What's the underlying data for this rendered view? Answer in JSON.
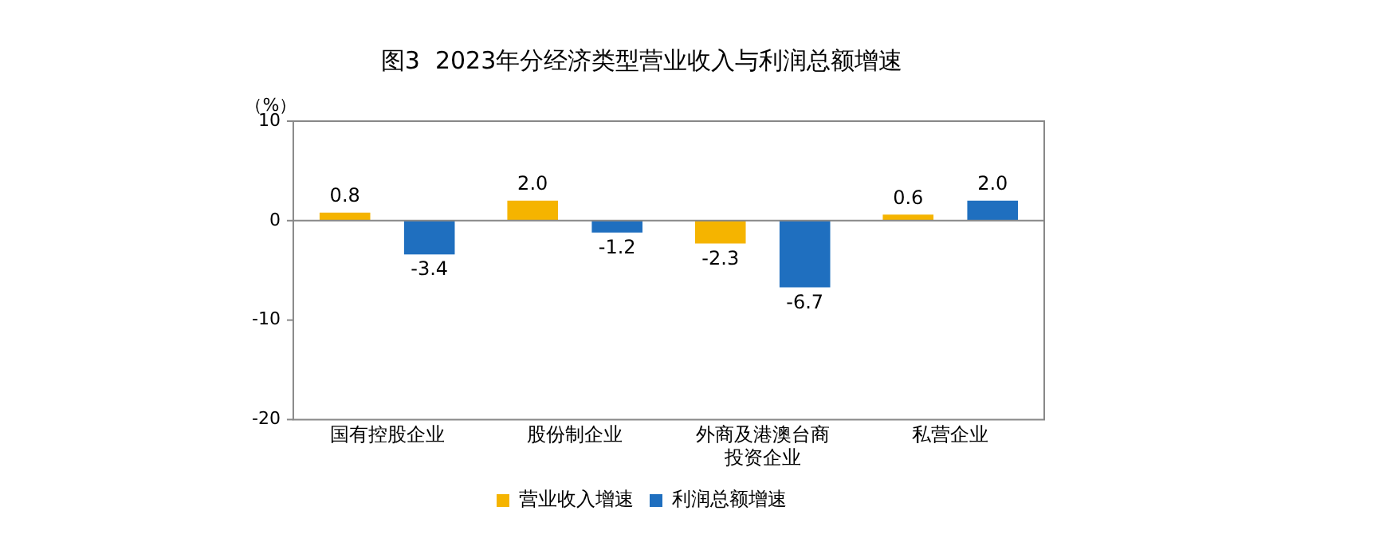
{
  "chart_data": {
    "type": "bar",
    "title": "图3  2023年分经济类型营业收入与利润总额增速",
    "ylabel": "（%）",
    "categories": [
      "国有控股企业",
      "股份制企业",
      "外商及港澳台商投资企业",
      "私营企业"
    ],
    "series": [
      {
        "name": "营业收入增速",
        "color": "#f5b400",
        "values": [
          0.8,
          2.0,
          -2.3,
          0.6
        ],
        "value_labels": [
          "0.8",
          "2.0",
          "-2.3",
          "0.6"
        ]
      },
      {
        "name": "利润总额增速",
        "color": "#1f6fbf",
        "values": [
          -3.4,
          -1.2,
          -6.7,
          2.0
        ],
        "value_labels": [
          "-3.4",
          "-1.2",
          "-6.7",
          "2.0"
        ]
      }
    ],
    "ylim": [
      -20,
      10
    ],
    "yticks": [
      -20,
      -10,
      0,
      10
    ],
    "grid": false,
    "legend": "bottom",
    "ref_lines": [
      {
        "axis": "y",
        "value": 0,
        "color": "#888888"
      }
    ]
  }
}
